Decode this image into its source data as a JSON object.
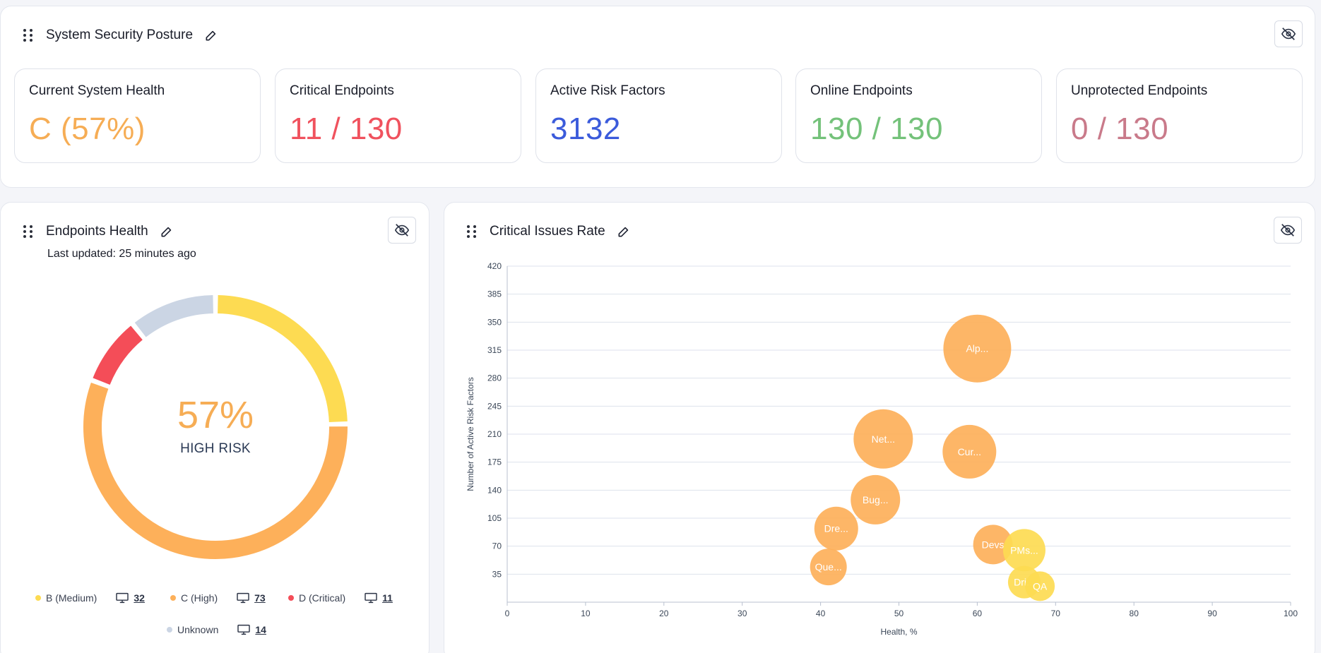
{
  "posture": {
    "title": "System Security Posture",
    "cards": [
      {
        "label": "Current System Health",
        "value": "C (57%)",
        "color": "#f6ad55"
      },
      {
        "label": "Critical Endpoints",
        "value": "11 / 130",
        "color": "#f0525e"
      },
      {
        "label": "Active Risk Factors",
        "value": "3132",
        "color": "#3b5bdb"
      },
      {
        "label": "Online Endpoints",
        "value": "130 / 130",
        "color": "#74c27a"
      },
      {
        "label": "Unprotected Endpoints",
        "value": "0 / 130",
        "color": "#c97a8a"
      }
    ]
  },
  "endpoints_health": {
    "title": "Endpoints Health",
    "updated": "Last updated: 25 minutes ago",
    "percent": "57%",
    "risk_label": "HIGH RISK",
    "segments": [
      {
        "name": "B (Medium)",
        "count": "32",
        "value": 32,
        "color": "#fddb52"
      },
      {
        "name": "C (High)",
        "count": "73",
        "value": 73,
        "color": "#fdb05a"
      },
      {
        "name": "D (Critical)",
        "count": "11",
        "value": 11,
        "color": "#f44d58"
      },
      {
        "name": "Unknown",
        "count": "14",
        "value": 14,
        "color": "#cbd5e4"
      }
    ]
  },
  "critical_issues": {
    "title": "Critical Issues Rate"
  },
  "chart_data": {
    "type": "scatter",
    "title": "Critical Issues Rate",
    "xlabel": "Health, %",
    "ylabel": "Number of Active Risk Factors",
    "xlim": [
      0,
      100
    ],
    "ylim": [
      0,
      420
    ],
    "x_ticks": [
      0,
      10,
      20,
      30,
      40,
      50,
      60,
      70,
      80,
      90,
      100
    ],
    "y_ticks": [
      35,
      70,
      105,
      140,
      175,
      210,
      245,
      280,
      315,
      350,
      385,
      420
    ],
    "grid": true,
    "points": [
      {
        "label": "Alp...",
        "x": 60,
        "y": 317,
        "size": 48,
        "color": "#fdb05a"
      },
      {
        "label": "Net...",
        "x": 48,
        "y": 204,
        "size": 42,
        "color": "#fdb05a"
      },
      {
        "label": "Cur...",
        "x": 59,
        "y": 188,
        "size": 38,
        "color": "#fdb05a"
      },
      {
        "label": "Bug...",
        "x": 47,
        "y": 128,
        "size": 35,
        "color": "#fdb05a"
      },
      {
        "label": "Dre...",
        "x": 42,
        "y": 92,
        "size": 31,
        "color": "#fdb05a"
      },
      {
        "label": "Que...",
        "x": 41,
        "y": 44,
        "size": 26,
        "color": "#fdb05a"
      },
      {
        "label": "Devs",
        "x": 62,
        "y": 72,
        "size": 28,
        "color": "#fdb05a"
      },
      {
        "label": "PMs...",
        "x": 66,
        "y": 65,
        "size": 30,
        "color": "#fddb52"
      },
      {
        "label": "Dri...",
        "x": 66,
        "y": 25,
        "size": 23,
        "color": "#fddb52"
      },
      {
        "label": "QA",
        "x": 68,
        "y": 20,
        "size": 21,
        "color": "#fddb52"
      }
    ]
  },
  "icons": {
    "drag": "drag-handle-icon",
    "edit": "pencil-icon",
    "hide": "eye-off-icon",
    "monitor": "monitor-icon"
  }
}
